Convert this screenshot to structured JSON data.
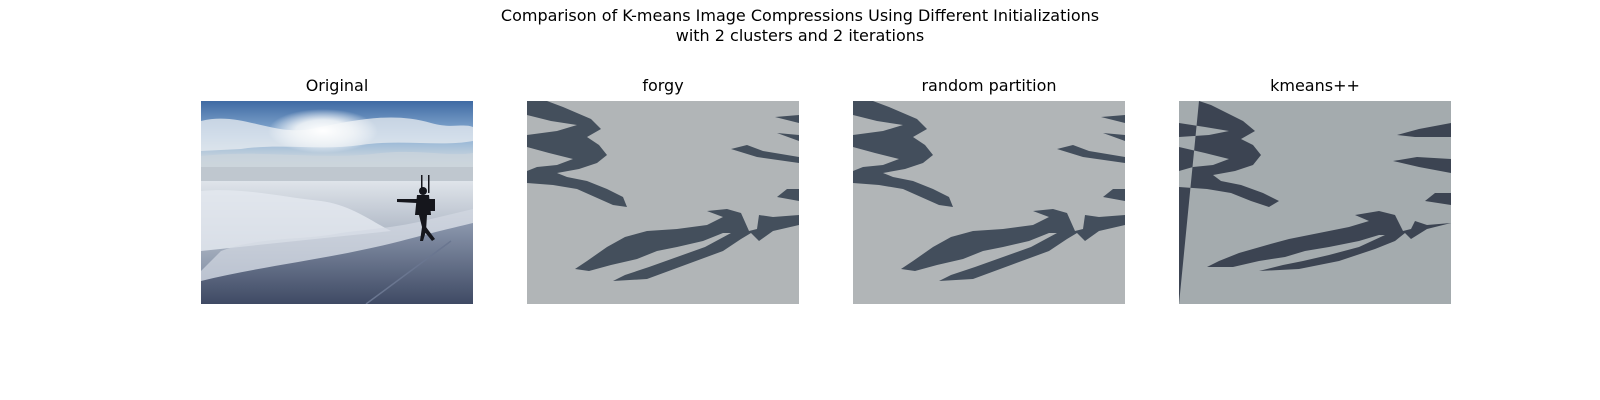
{
  "chart_data": {
    "type": "image-grid",
    "title": "Comparison of K-means Image Compressions Using Different Initializations",
    "subtitle": "with 2 clusters and 2 iterations",
    "panels": [
      {
        "title": "Original",
        "kind": "photo"
      },
      {
        "title": "forgy",
        "kind": "clustered",
        "colors": [
          "#b1b5b7",
          "#444f5c"
        ]
      },
      {
        "title": "random partition",
        "kind": "clustered",
        "colors": [
          "#b1b5b7",
          "#434e5c"
        ]
      },
      {
        "title": "kmeans++",
        "kind": "clustered",
        "colors": [
          "#a4abae",
          "#3c4452"
        ]
      }
    ]
  }
}
